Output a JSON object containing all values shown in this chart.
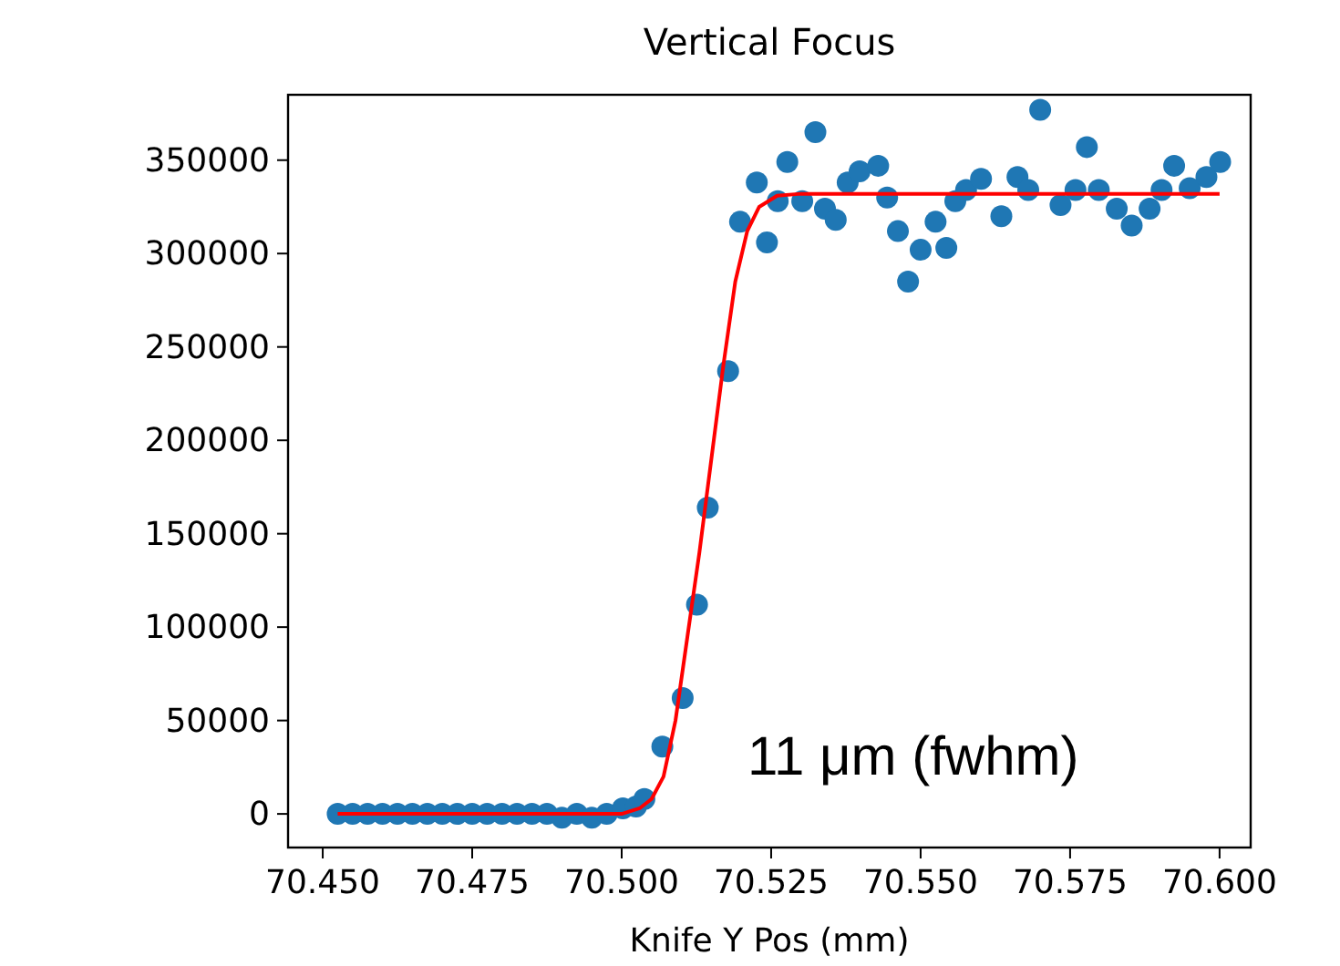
{
  "chart_data": {
    "type": "scatter",
    "title": "Vertical Focus",
    "xlabel": "Knife Y Pos (mm)",
    "annotations": [
      "11 μm (fwhm)"
    ],
    "xlim": [
      70.4442,
      70.6052
    ],
    "ylim": [
      -18000,
      385000
    ],
    "xticks": [
      {
        "value": 70.45,
        "label": "70.450"
      },
      {
        "value": 70.475,
        "label": "70.475"
      },
      {
        "value": 70.5,
        "label": "70.500"
      },
      {
        "value": 70.525,
        "label": "70.525"
      },
      {
        "value": 70.55,
        "label": "70.550"
      },
      {
        "value": 70.575,
        "label": "70.575"
      },
      {
        "value": 70.6,
        "label": "70.600"
      }
    ],
    "yticks": [
      0,
      50000,
      100000,
      150000,
      200000,
      250000,
      300000,
      350000
    ],
    "grid": false,
    "series": [
      {
        "color": "#1f77b4",
        "marker": "circle",
        "x": [
          70.4525,
          70.455,
          70.4575,
          70.46,
          70.4625,
          70.465,
          70.4675,
          70.47,
          70.4725,
          70.475,
          70.4775,
          70.48,
          70.4825,
          70.485,
          70.4875,
          70.49,
          70.4925,
          70.495,
          70.4975,
          70.5002,
          70.5024,
          70.5038,
          70.5068,
          70.5102,
          70.5126,
          70.5144,
          70.5178,
          70.5198,
          70.5226,
          70.5243,
          70.5261,
          70.5277,
          70.5302,
          70.5324,
          70.534,
          70.5358,
          70.5378,
          70.5398,
          70.5429,
          70.5444,
          70.5462,
          70.5479,
          70.55,
          70.5525,
          70.5543,
          70.5558,
          70.5576,
          70.5601,
          70.5635,
          70.5662,
          70.568,
          70.57,
          70.5734,
          70.5759,
          70.5778,
          70.5798,
          70.5828,
          70.5853,
          70.5883,
          70.5903,
          70.5924,
          70.595,
          70.5978,
          70.6001
        ],
        "values": [
          0,
          0,
          0,
          0,
          0,
          0,
          0,
          0,
          0,
          0,
          0,
          0,
          0,
          0,
          0,
          -2000,
          0,
          -2000,
          0,
          3000,
          4000,
          8000,
          36000,
          62000,
          112000,
          164000,
          237000,
          317000,
          338000,
          306000,
          328000,
          349000,
          328000,
          365000,
          324000,
          318000,
          338000,
          344000,
          347000,
          330000,
          312000,
          285000,
          302000,
          317000,
          303000,
          328000,
          334000,
          340000,
          320000,
          341000,
          334000,
          377000,
          326000,
          334000,
          357000,
          334000,
          324000,
          315000,
          324000,
          334000,
          347000,
          335000,
          341000,
          349000
        ]
      },
      {
        "type": "line",
        "color": "#ff0000",
        "marker": "none",
        "x": [
          70.4525,
          70.5,
          70.503,
          70.505,
          70.507,
          70.509,
          70.511,
          70.513,
          70.515,
          70.517,
          70.519,
          70.521,
          70.523,
          70.526,
          70.53,
          70.6
        ],
        "values": [
          0,
          0,
          3000,
          8000,
          20000,
          50000,
          95000,
          140000,
          190000,
          240000,
          285000,
          312000,
          325000,
          331000,
          332000,
          332000
        ]
      }
    ]
  }
}
